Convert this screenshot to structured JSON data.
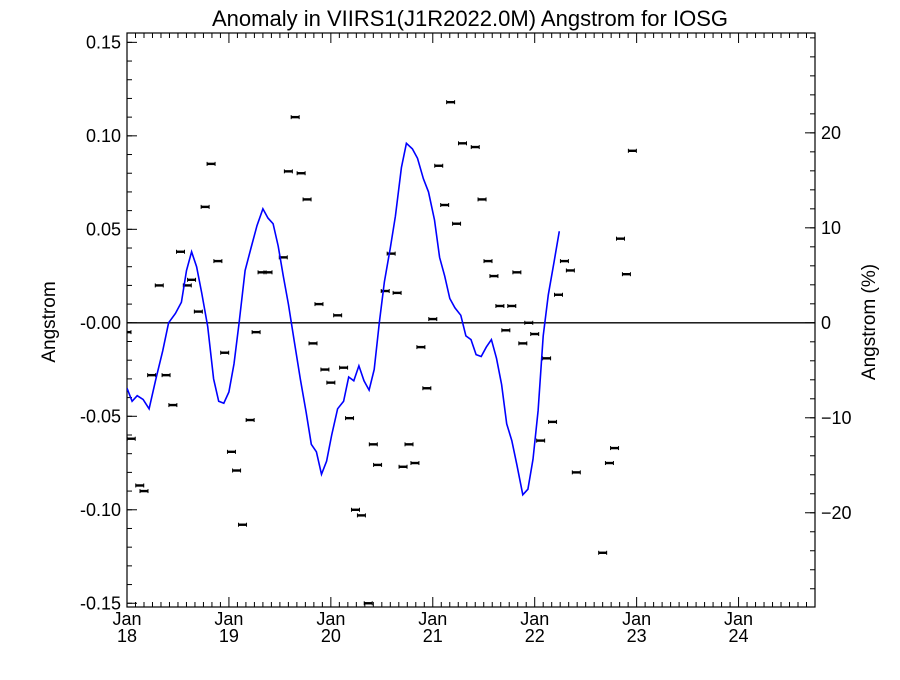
{
  "colors": {
    "fit_line": "#0000ff",
    "points": "#000000",
    "zero_line": "#000000"
  },
  "chart_data": {
    "type": "scatter",
    "title": "Anomaly in VIIRS1(J1R2022.0M) Angstrom for IOSG",
    "ylabel": "Angstrom",
    "ylabel_right": "Angstrom (%)",
    "x_ticks": [
      {
        "month": "Jan",
        "year": "18",
        "t": 0
      },
      {
        "month": "Jan",
        "year": "19",
        "t": 12
      },
      {
        "month": "Jan",
        "year": "20",
        "t": 24
      },
      {
        "month": "Jan",
        "year": "21",
        "t": 36
      },
      {
        "month": "Jan",
        "year": "22",
        "t": 48
      },
      {
        "month": "Jan",
        "year": "23",
        "t": 60
      },
      {
        "month": "Jan",
        "year": "24",
        "t": 72
      }
    ],
    "xlim": [
      0,
      81
    ],
    "ylim": [
      -0.152,
      0.155
    ],
    "y_ticks": [
      {
        "v": 0.15,
        "label": "0.15"
      },
      {
        "v": 0.1,
        "label": "0.10"
      },
      {
        "v": 0.05,
        "label": "0.05"
      },
      {
        "v": 0.0,
        "label": "-0.00"
      },
      {
        "v": -0.05,
        "label": "-0.05"
      },
      {
        "v": -0.1,
        "label": "-0.10"
      },
      {
        "v": -0.15,
        "label": "-0.15"
      }
    ],
    "y_right_ticks": [
      {
        "pct": 20,
        "label": "20"
      },
      {
        "pct": 10,
        "label": "10"
      },
      {
        "pct": 0,
        "label": "0"
      },
      {
        "pct": -10,
        "label": "−10"
      },
      {
        "pct": -20,
        "label": "−20"
      }
    ],
    "right_axis_scale": 0.00508,
    "zero_line": 0,
    "series": [
      {
        "type": "points",
        "points": [
          {
            "t": 0,
            "y": -0.005
          },
          {
            "t": 0.5,
            "y": -0.062
          },
          {
            "t": 1.5,
            "y": -0.087
          },
          {
            "t": 2.0,
            "y": -0.09
          },
          {
            "t": 2.9,
            "y": -0.028
          },
          {
            "t": 3.8,
            "y": 0.02
          },
          {
            "t": 4.6,
            "y": -0.028
          },
          {
            "t": 5.4,
            "y": -0.044
          },
          {
            "t": 6.3,
            "y": 0.038
          },
          {
            "t": 7.1,
            "y": 0.02
          },
          {
            "t": 7.6,
            "y": 0.023
          },
          {
            "t": 8.4,
            "y": 0.006
          },
          {
            "t": 9.2,
            "y": 0.062
          },
          {
            "t": 9.9,
            "y": 0.085
          },
          {
            "t": 10.7,
            "y": 0.033
          },
          {
            "t": 11.5,
            "y": -0.016
          },
          {
            "t": 12.3,
            "y": -0.069
          },
          {
            "t": 12.9,
            "y": -0.079
          },
          {
            "t": 13.6,
            "y": -0.108
          },
          {
            "t": 14.5,
            "y": -0.052
          },
          {
            "t": 15.2,
            "y": -0.005
          },
          {
            "t": 15.9,
            "y": 0.027
          },
          {
            "t": 16.6,
            "y": 0.027
          },
          {
            "t": 18.4,
            "y": 0.035
          },
          {
            "t": 19.0,
            "y": 0.081
          },
          {
            "t": 19.8,
            "y": 0.11
          },
          {
            "t": 20.5,
            "y": 0.08
          },
          {
            "t": 21.2,
            "y": 0.066
          },
          {
            "t": 21.9,
            "y": -0.011
          },
          {
            "t": 22.6,
            "y": 0.01
          },
          {
            "t": 23.3,
            "y": -0.025
          },
          {
            "t": 24.0,
            "y": -0.032
          },
          {
            "t": 24.8,
            "y": 0.004
          },
          {
            "t": 25.5,
            "y": -0.024
          },
          {
            "t": 26.2,
            "y": -0.051
          },
          {
            "t": 26.9,
            "y": -0.1
          },
          {
            "t": 27.6,
            "y": -0.103
          },
          {
            "t": 28.4,
            "y": -0.15
          },
          {
            "t": 29.0,
            "y": -0.065
          },
          {
            "t": 29.5,
            "y": -0.076
          },
          {
            "t": 30.4,
            "y": 0.017
          },
          {
            "t": 31.1,
            "y": 0.037
          },
          {
            "t": 31.8,
            "y": 0.016
          },
          {
            "t": 32.5,
            "y": -0.077
          },
          {
            "t": 33.2,
            "y": -0.065
          },
          {
            "t": 33.9,
            "y": -0.075
          },
          {
            "t": 34.6,
            "y": -0.013
          },
          {
            "t": 35.3,
            "y": -0.035
          },
          {
            "t": 36.0,
            "y": 0.002
          },
          {
            "t": 36.7,
            "y": 0.084
          },
          {
            "t": 37.4,
            "y": 0.063
          },
          {
            "t": 38.1,
            "y": 0.118
          },
          {
            "t": 38.8,
            "y": 0.053
          },
          {
            "t": 39.5,
            "y": 0.096
          },
          {
            "t": 41.0,
            "y": 0.094
          },
          {
            "t": 41.8,
            "y": 0.066
          },
          {
            "t": 42.5,
            "y": 0.033
          },
          {
            "t": 43.2,
            "y": 0.025
          },
          {
            "t": 43.9,
            "y": 0.009
          },
          {
            "t": 44.6,
            "y": -0.004
          },
          {
            "t": 45.3,
            "y": 0.009
          },
          {
            "t": 45.9,
            "y": 0.027
          },
          {
            "t": 46.6,
            "y": -0.011
          },
          {
            "t": 47.3,
            "y": 0.0
          },
          {
            "t": 48.0,
            "y": -0.006
          },
          {
            "t": 48.7,
            "y": -0.063
          },
          {
            "t": 49.4,
            "y": -0.019
          },
          {
            "t": 50.1,
            "y": -0.053
          },
          {
            "t": 50.8,
            "y": 0.015
          },
          {
            "t": 51.5,
            "y": 0.033
          },
          {
            "t": 52.2,
            "y": 0.028
          },
          {
            "t": 52.9,
            "y": -0.08
          },
          {
            "t": 56.0,
            "y": -0.123
          },
          {
            "t": 56.8,
            "y": -0.075
          },
          {
            "t": 57.4,
            "y": -0.067
          },
          {
            "t": 58.1,
            "y": 0.045
          },
          {
            "t": 58.8,
            "y": 0.026
          },
          {
            "t": 59.5,
            "y": 0.092
          }
        ]
      },
      {
        "type": "line",
        "points": [
          {
            "t": 0,
            "y": -0.035
          },
          {
            "t": 0.6,
            "y": -0.042
          },
          {
            "t": 1.2,
            "y": -0.039
          },
          {
            "t": 1.9,
            "y": -0.041
          },
          {
            "t": 2.6,
            "y": -0.046
          },
          {
            "t": 3.4,
            "y": -0.03
          },
          {
            "t": 4.2,
            "y": -0.015
          },
          {
            "t": 4.9,
            "y": 0.0
          },
          {
            "t": 5.7,
            "y": 0.005
          },
          {
            "t": 6.4,
            "y": 0.011
          },
          {
            "t": 7.0,
            "y": 0.028
          },
          {
            "t": 7.6,
            "y": 0.038
          },
          {
            "t": 8.2,
            "y": 0.03
          },
          {
            "t": 8.8,
            "y": 0.016
          },
          {
            "t": 9.5,
            "y": -0.002
          },
          {
            "t": 10.2,
            "y": -0.03
          },
          {
            "t": 10.8,
            "y": -0.042
          },
          {
            "t": 11.4,
            "y": -0.043
          },
          {
            "t": 12.0,
            "y": -0.037
          },
          {
            "t": 12.6,
            "y": -0.022
          },
          {
            "t": 13.2,
            "y": 0.0
          },
          {
            "t": 13.9,
            "y": 0.028
          },
          {
            "t": 14.6,
            "y": 0.04
          },
          {
            "t": 15.3,
            "y": 0.052
          },
          {
            "t": 16.0,
            "y": 0.061
          },
          {
            "t": 16.6,
            "y": 0.056
          },
          {
            "t": 17.2,
            "y": 0.053
          },
          {
            "t": 17.8,
            "y": 0.041
          },
          {
            "t": 18.4,
            "y": 0.025
          },
          {
            "t": 19.0,
            "y": 0.01
          },
          {
            "t": 19.7,
            "y": -0.01
          },
          {
            "t": 20.4,
            "y": -0.03
          },
          {
            "t": 21.1,
            "y": -0.048
          },
          {
            "t": 21.7,
            "y": -0.065
          },
          {
            "t": 22.3,
            "y": -0.069
          },
          {
            "t": 22.9,
            "y": -0.081
          },
          {
            "t": 23.5,
            "y": -0.074
          },
          {
            "t": 24.1,
            "y": -0.06
          },
          {
            "t": 24.8,
            "y": -0.046
          },
          {
            "t": 25.5,
            "y": -0.042
          },
          {
            "t": 26.1,
            "y": -0.029
          },
          {
            "t": 26.7,
            "y": -0.031
          },
          {
            "t": 27.3,
            "y": -0.023
          },
          {
            "t": 27.9,
            "y": -0.031
          },
          {
            "t": 28.5,
            "y": -0.036
          },
          {
            "t": 29.1,
            "y": -0.025
          },
          {
            "t": 29.7,
            "y": 0.0
          },
          {
            "t": 30.3,
            "y": 0.022
          },
          {
            "t": 31.0,
            "y": 0.04
          },
          {
            "t": 31.6,
            "y": 0.057
          },
          {
            "t": 32.3,
            "y": 0.083
          },
          {
            "t": 32.9,
            "y": 0.096
          },
          {
            "t": 33.6,
            "y": 0.093
          },
          {
            "t": 34.2,
            "y": 0.088
          },
          {
            "t": 34.9,
            "y": 0.077
          },
          {
            "t": 35.5,
            "y": 0.07
          },
          {
            "t": 36.2,
            "y": 0.055
          },
          {
            "t": 36.8,
            "y": 0.035
          },
          {
            "t": 37.4,
            "y": 0.025
          },
          {
            "t": 38.0,
            "y": 0.013
          },
          {
            "t": 38.6,
            "y": 0.008
          },
          {
            "t": 39.3,
            "y": 0.004
          },
          {
            "t": 39.9,
            "y": -0.007
          },
          {
            "t": 40.5,
            "y": -0.009
          },
          {
            "t": 41.1,
            "y": -0.017
          },
          {
            "t": 41.7,
            "y": -0.018
          },
          {
            "t": 42.3,
            "y": -0.013
          },
          {
            "t": 42.9,
            "y": -0.009
          },
          {
            "t": 43.5,
            "y": -0.019
          },
          {
            "t": 44.1,
            "y": -0.033
          },
          {
            "t": 44.7,
            "y": -0.054
          },
          {
            "t": 45.3,
            "y": -0.063
          },
          {
            "t": 45.9,
            "y": -0.076
          },
          {
            "t": 46.6,
            "y": -0.092
          },
          {
            "t": 47.2,
            "y": -0.089
          },
          {
            "t": 47.8,
            "y": -0.073
          },
          {
            "t": 48.4,
            "y": -0.047
          },
          {
            "t": 49.0,
            "y": -0.007
          },
          {
            "t": 49.6,
            "y": 0.015
          },
          {
            "t": 50.3,
            "y": 0.033
          },
          {
            "t": 50.9,
            "y": 0.049
          }
        ]
      }
    ],
    "grid": false,
    "legend": "none"
  }
}
